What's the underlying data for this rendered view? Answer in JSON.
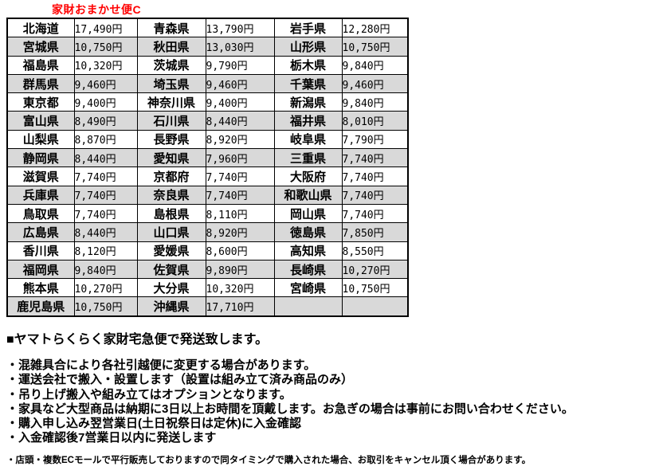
{
  "title": "家財おまかせ便C",
  "colors": {
    "title_red": "#ff0000",
    "row_alt_gray": "#d9d9d9",
    "border_black": "#000000"
  },
  "chart_data": {
    "type": "table",
    "title": "家財おまかせ便C",
    "columns": [
      "prefecture",
      "price",
      "prefecture",
      "price",
      "prefecture",
      "price"
    ],
    "rows": [
      [
        "北海道",
        "17,490円",
        "青森県",
        "13,790円",
        "岩手県",
        "12,280円"
      ],
      [
        "宮城県",
        "10,750円",
        "秋田県",
        "13,030円",
        "山形県",
        "10,750円"
      ],
      [
        "福島県",
        "10,320円",
        "茨城県",
        "9,790円",
        "栃木県",
        "9,840円"
      ],
      [
        "群馬県",
        "9,460円",
        "埼玉県",
        "9,460円",
        "千葉県",
        "9,460円"
      ],
      [
        "東京都",
        "9,400円",
        "神奈川県",
        "9,400円",
        "新潟県",
        "9,840円"
      ],
      [
        "富山県",
        "8,490円",
        "石川県",
        "8,440円",
        "福井県",
        "8,010円"
      ],
      [
        "山梨県",
        "8,870円",
        "長野県",
        "8,920円",
        "岐阜県",
        "7,790円"
      ],
      [
        "静岡県",
        "8,440円",
        "愛知県",
        "7,960円",
        "三重県",
        "7,740円"
      ],
      [
        "滋賀県",
        "7,740円",
        "京都府",
        "7,740円",
        "大阪府",
        "7,740円"
      ],
      [
        "兵庫県",
        "7,740円",
        "奈良県",
        "7,740円",
        "和歌山県",
        "7,740円"
      ],
      [
        "鳥取県",
        "7,740円",
        "島根県",
        "8,110円",
        "岡山県",
        "7,740円"
      ],
      [
        "広島県",
        "8,440円",
        "山口県",
        "8,920円",
        "徳島県",
        "7,850円"
      ],
      [
        "香川県",
        "8,120円",
        "愛媛県",
        "8,600円",
        "高知県",
        "8,550円"
      ],
      [
        "福岡県",
        "9,840円",
        "佐賀県",
        "9,890円",
        "長崎県",
        "10,270円"
      ],
      [
        "熊本県",
        "10,270円",
        "大分県",
        "10,320円",
        "宮崎県",
        "10,750円"
      ],
      [
        "鹿児島県",
        "10,750円",
        "沖縄県",
        "17,710円",
        "",
        ""
      ]
    ]
  },
  "notes": {
    "heading": "■ヤマトらくらく家財宅急便で発送致します。",
    "bullets": [
      "・混雑具合により各社引越便に変更する場合があります。",
      "・運送会社で搬入・設置します（設置は組み立て済み商品のみ）",
      "・吊り上げ搬入や組み立てはオプションとなります。",
      "・家具など大型商品は納期に3日以上お時間を頂戴します。お急ぎの場合は事前にお問い合わせください。",
      "・購入申し込み翌営業日(土日祝祭日は定休)に入金確認",
      "・入金確認後7営業日以内に発送します"
    ],
    "fine_print": "・店頭・複数ECモールで平行販売しておりますので同タイミングで購入された場合、お取引をキャンセル頂く場合があります。"
  }
}
